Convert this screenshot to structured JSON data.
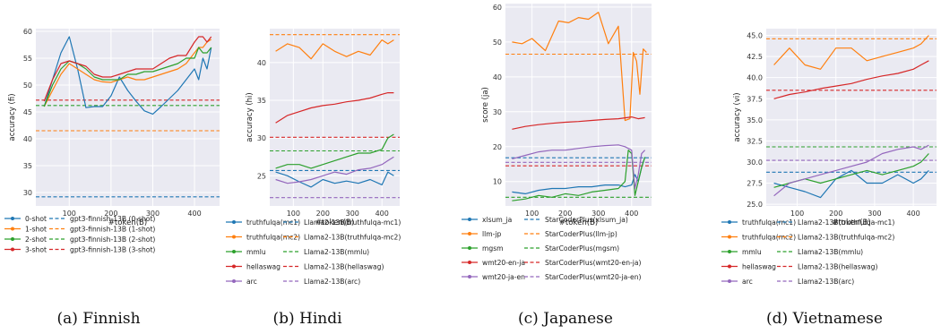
{
  "colors": {
    "panel_bg": "#eaeaf2",
    "grid": "#ffffff",
    "blue": "#1f77b4",
    "orange": "#ff7f0e",
    "green": "#2ca02c",
    "red": "#d62728",
    "purple": "#9467bd"
  },
  "chart_data": [
    {
      "type": "line",
      "caption": "(a) Finnish",
      "ylabel": "accuracy (fi)",
      "xlabel": "#token(B)",
      "xlim": [
        20,
        460
      ],
      "ylim": [
        27.5,
        60.5
      ],
      "xticks": [
        100,
        200,
        300,
        400
      ],
      "yticks": [
        30,
        35,
        40,
        45,
        50,
        55,
        60
      ],
      "legend_placement": "below",
      "legend_columns": 2,
      "grid": true,
      "series": [
        {
          "name": "0-shot",
          "color": "#1f77b4",
          "style": "solid",
          "x": [
            40,
            60,
            80,
            100,
            120,
            140,
            160,
            180,
            200,
            220,
            240,
            260,
            280,
            300,
            320,
            340,
            360,
            380,
            400,
            410,
            420,
            430,
            440
          ],
          "y": [
            46,
            51,
            56,
            59,
            53,
            45.8,
            46,
            46,
            48,
            51.5,
            49,
            47,
            45.2,
            44.6,
            46,
            47.5,
            49,
            51,
            53,
            51,
            55,
            53,
            57
          ]
        },
        {
          "name": "1-shot",
          "color": "#ff7f0e",
          "style": "solid",
          "x": [
            40,
            60,
            80,
            100,
            120,
            140,
            160,
            180,
            200,
            220,
            240,
            260,
            280,
            300,
            320,
            340,
            360,
            380,
            400,
            410,
            420,
            430,
            440
          ],
          "y": [
            46,
            49,
            52,
            54,
            53,
            52,
            51,
            50.6,
            50.5,
            51,
            51.5,
            51,
            51,
            51.5,
            52,
            52.5,
            53,
            54,
            56,
            57,
            57,
            58,
            58.5
          ]
        },
        {
          "name": "2-shot",
          "color": "#2ca02c",
          "style": "solid",
          "x": [
            40,
            60,
            80,
            100,
            120,
            140,
            160,
            180,
            200,
            220,
            240,
            260,
            280,
            300,
            320,
            340,
            360,
            380,
            400,
            410,
            420,
            430,
            440
          ],
          "y": [
            46,
            50,
            53,
            54.5,
            54,
            53,
            51.5,
            51,
            51,
            51,
            52,
            52,
            52.5,
            52.5,
            53,
            53.5,
            54,
            55,
            55,
            57,
            56,
            56,
            57
          ]
        },
        {
          "name": "3-shot",
          "color": "#d62728",
          "style": "solid",
          "x": [
            40,
            60,
            80,
            100,
            120,
            140,
            160,
            180,
            200,
            220,
            240,
            260,
            280,
            300,
            320,
            340,
            360,
            380,
            400,
            410,
            420,
            430,
            440
          ],
          "y": [
            47,
            51,
            54,
            54.5,
            54,
            53.5,
            52,
            51.5,
            51.5,
            52,
            52.5,
            53,
            53,
            53,
            54,
            55,
            55.5,
            55.5,
            58,
            59,
            59,
            58,
            59
          ]
        },
        {
          "name": "gpt3-finnish-13B (0-shot)",
          "color": "#1f77b4",
          "style": "dashed",
          "x": [
            20,
            460
          ],
          "y": [
            29.2,
            29.2
          ]
        },
        {
          "name": "gpt3-finnish-13B (1-shot)",
          "color": "#ff7f0e",
          "style": "dashed",
          "x": [
            20,
            460
          ],
          "y": [
            41.5,
            41.5
          ]
        },
        {
          "name": "gpt3-finnish-13B (2-shot)",
          "color": "#2ca02c",
          "style": "dashed",
          "x": [
            20,
            460
          ],
          "y": [
            46.2,
            46.2
          ]
        },
        {
          "name": "gpt3-finnish-13B (3-shot)",
          "color": "#d62728",
          "style": "dashed",
          "x": [
            20,
            460
          ],
          "y": [
            47.2,
            47.2
          ]
        }
      ]
    },
    {
      "type": "line",
      "caption": "(b) Hindi",
      "ylabel": "accuracy (hi)",
      "xlabel": "#token(B)",
      "xlim": [
        20,
        460
      ],
      "ylim": [
        21,
        44.5
      ],
      "xticks": [
        100,
        200,
        300,
        400
      ],
      "yticks": [
        25,
        30,
        35,
        40
      ],
      "legend_placement": "below",
      "legend_columns": 2,
      "grid": true,
      "series": [
        {
          "name": "truthfulqa(mc1)",
          "color": "#1f77b4",
          "style": "solid",
          "x": [
            40,
            80,
            120,
            160,
            200,
            240,
            280,
            320,
            360,
            400,
            420,
            440
          ],
          "y": [
            25.5,
            25,
            24.2,
            23.5,
            24.5,
            24,
            24.3,
            24,
            24.5,
            23.8,
            25.5,
            25
          ]
        },
        {
          "name": "truthfulqa(mc2)",
          "color": "#ff7f0e",
          "style": "solid",
          "x": [
            40,
            80,
            120,
            160,
            200,
            240,
            280,
            320,
            360,
            400,
            420,
            440
          ],
          "y": [
            41.5,
            42.5,
            42,
            40.5,
            42.5,
            41.5,
            40.8,
            41.5,
            41,
            43,
            42.5,
            43
          ]
        },
        {
          "name": "mmlu",
          "color": "#2ca02c",
          "style": "solid",
          "x": [
            40,
            80,
            120,
            160,
            200,
            240,
            280,
            320,
            360,
            400,
            420,
            440
          ],
          "y": [
            26,
            26.5,
            26.5,
            26,
            26.5,
            27,
            27.5,
            28,
            28,
            28.5,
            30,
            30.5
          ]
        },
        {
          "name": "hellaswag",
          "color": "#d62728",
          "style": "solid",
          "x": [
            40,
            80,
            120,
            160,
            200,
            240,
            280,
            320,
            360,
            400,
            420,
            440
          ],
          "y": [
            32,
            33,
            33.5,
            34,
            34.3,
            34.5,
            34.8,
            35,
            35.3,
            35.8,
            36,
            36
          ]
        },
        {
          "name": "arc",
          "color": "#9467bd",
          "style": "solid",
          "x": [
            40,
            80,
            120,
            160,
            200,
            240,
            280,
            320,
            360,
            400,
            420,
            440
          ],
          "y": [
            24.5,
            24,
            24.2,
            24.5,
            25,
            25.5,
            25.2,
            25.8,
            26,
            26.5,
            27,
            27.5
          ]
        },
        {
          "name": "Llama2-13B(truthfulqa-mc1)",
          "color": "#1f77b4",
          "style": "dashed",
          "x": [
            20,
            460
          ],
          "y": [
            25.7,
            25.7
          ]
        },
        {
          "name": "Llama2-13B(truthfulqa-mc2)",
          "color": "#ff7f0e",
          "style": "dashed",
          "x": [
            20,
            460
          ],
          "y": [
            43.7,
            43.7
          ]
        },
        {
          "name": "Llama2-13B(mmlu)",
          "color": "#2ca02c",
          "style": "dashed",
          "x": [
            20,
            460
          ],
          "y": [
            28.3,
            28.3
          ]
        },
        {
          "name": "Llama2-13B(hellaswag)",
          "color": "#d62728",
          "style": "dashed",
          "x": [
            20,
            460
          ],
          "y": [
            30.1,
            30.1
          ]
        },
        {
          "name": "Llama2-13B(arc)",
          "color": "#9467bd",
          "style": "dashed",
          "x": [
            20,
            460
          ],
          "y": [
            22.1,
            22.1
          ]
        }
      ]
    },
    {
      "type": "line",
      "caption": "(c) Japanese",
      "ylabel": "score (ja)",
      "xlabel": "#token(B)",
      "xlim": [
        20,
        460
      ],
      "ylim": [
        3,
        61
      ],
      "xticks": [
        100,
        200,
        300,
        400
      ],
      "yticks": [
        10,
        20,
        30,
        40,
        50,
        60
      ],
      "legend_placement": "below",
      "legend_columns": 2,
      "grid": true,
      "series": [
        {
          "name": "xlsum_ja",
          "color": "#1f77b4",
          "style": "solid",
          "x": [
            40,
            80,
            120,
            160,
            200,
            240,
            280,
            320,
            360,
            380,
            400,
            410,
            420,
            430,
            440
          ],
          "y": [
            7,
            6.5,
            7.5,
            8,
            8,
            8.5,
            8.5,
            9,
            9,
            8.5,
            9,
            12,
            10,
            14,
            17
          ]
        },
        {
          "name": "llm-jp",
          "color": "#ff7f0e",
          "style": "solid",
          "x": [
            40,
            70,
            100,
            140,
            180,
            210,
            240,
            270,
            300,
            330,
            360,
            380,
            395,
            405,
            415,
            425,
            435,
            445
          ],
          "y": [
            50,
            49.5,
            51,
            47.5,
            56,
            55.5,
            57,
            56.5,
            58.5,
            49.5,
            54.5,
            27.5,
            28,
            47,
            44.5,
            35,
            48,
            47
          ]
        },
        {
          "name": "mgsm",
          "color": "#2ca02c",
          "style": "solid",
          "x": [
            40,
            80,
            120,
            160,
            200,
            240,
            280,
            320,
            360,
            380,
            390,
            400,
            410,
            420,
            430,
            440
          ],
          "y": [
            4.5,
            5,
            6,
            5.5,
            6.5,
            6,
            7,
            7.5,
            8,
            10,
            19,
            18,
            6,
            10,
            14,
            17
          ]
        },
        {
          "name": "wmt20-en-ja",
          "color": "#d62728",
          "style": "solid",
          "x": [
            40,
            80,
            120,
            160,
            200,
            240,
            280,
            320,
            360,
            400,
            420,
            440
          ],
          "y": [
            25,
            25.8,
            26.3,
            26.7,
            27,
            27.2,
            27.5,
            27.8,
            28,
            28.5,
            28,
            28.3
          ]
        },
        {
          "name": "wmt20-ja-en",
          "color": "#9467bd",
          "style": "solid",
          "x": [
            40,
            80,
            120,
            160,
            200,
            240,
            280,
            320,
            360,
            380,
            400,
            410,
            420,
            430,
            440
          ],
          "y": [
            16.5,
            17.5,
            18.5,
            19,
            19,
            19.5,
            20,
            20.3,
            20.5,
            20,
            19,
            8,
            12,
            18,
            19
          ]
        },
        {
          "name": "StarCoderPlus(xlsum_ja)",
          "color": "#1f77b4",
          "style": "dashed",
          "x": [
            20,
            460
          ],
          "y": [
            16.8,
            16.8
          ]
        },
        {
          "name": "StarCoderPlus(llm-jp)",
          "color": "#ff7f0e",
          "style": "dashed",
          "x": [
            20,
            460
          ],
          "y": [
            46.5,
            46.5
          ]
        },
        {
          "name": "StarCoderPlus(mgsm)",
          "color": "#2ca02c",
          "style": "dashed",
          "x": [
            20,
            460
          ],
          "y": [
            5.5,
            5.5
          ]
        },
        {
          "name": "StarCoderPlus(wmt20-en-ja)",
          "color": "#d62728",
          "style": "dashed",
          "x": [
            20,
            460
          ],
          "y": [
            14.5,
            14.5
          ]
        },
        {
          "name": "StarCoderPlus(wmt20-ja-en)",
          "color": "#9467bd",
          "style": "dashed",
          "x": [
            20,
            460
          ],
          "y": [
            15.5,
            15.5
          ]
        }
      ]
    },
    {
      "type": "line",
      "caption": "(d) Vietnamese",
      "ylabel": "accuracy (vi)",
      "xlabel": "#token(B)",
      "xlim": [
        20,
        460
      ],
      "ylim": [
        24.8,
        45.8
      ],
      "xticks": [
        100,
        200,
        300,
        400
      ],
      "yticks": [
        25.0,
        27.5,
        30.0,
        32.5,
        35.0,
        37.5,
        40.0,
        42.5,
        45.0
      ],
      "legend_placement": "below",
      "legend_columns": 2,
      "grid": true,
      "series": [
        {
          "name": "truthfulqa(mc1)",
          "color": "#1f77b4",
          "style": "solid",
          "x": [
            40,
            80,
            120,
            160,
            200,
            240,
            280,
            320,
            360,
            400,
            420,
            440
          ],
          "y": [
            27.5,
            27,
            26.5,
            25.8,
            28,
            29,
            27.5,
            27.5,
            28.5,
            27.5,
            28,
            29
          ]
        },
        {
          "name": "truthfulqa(mc2)",
          "color": "#ff7f0e",
          "style": "solid",
          "x": [
            40,
            80,
            120,
            160,
            200,
            240,
            280,
            320,
            360,
            400,
            420,
            440
          ],
          "y": [
            41.5,
            43.5,
            41.5,
            41,
            43.5,
            43.5,
            42,
            42.5,
            43,
            43.5,
            44,
            45
          ]
        },
        {
          "name": "mmlu",
          "color": "#2ca02c",
          "style": "solid",
          "x": [
            40,
            80,
            120,
            160,
            200,
            240,
            280,
            320,
            360,
            400,
            420,
            440
          ],
          "y": [
            27,
            27.5,
            28,
            27.5,
            28,
            28.5,
            29,
            28.5,
            29,
            29.5,
            30,
            31
          ]
        },
        {
          "name": "hellaswag",
          "color": "#d62728",
          "style": "solid",
          "x": [
            40,
            80,
            120,
            160,
            200,
            240,
            280,
            320,
            360,
            400,
            420,
            440
          ],
          "y": [
            37.5,
            38,
            38.3,
            38.7,
            39,
            39.3,
            39.8,
            40.2,
            40.5,
            41,
            41.5,
            42
          ]
        },
        {
          "name": "arc",
          "color": "#9467bd",
          "style": "solid",
          "x": [
            40,
            80,
            120,
            160,
            200,
            240,
            280,
            320,
            360,
            400,
            420,
            440
          ],
          "y": [
            26,
            27.5,
            28,
            28.5,
            29,
            29.5,
            30,
            31,
            31.5,
            31.8,
            31.5,
            32
          ]
        },
        {
          "name": "Llama2-13B(truthfulqa-mc1)",
          "color": "#1f77b4",
          "style": "dashed",
          "x": [
            20,
            460
          ],
          "y": [
            28.8,
            28.8
          ]
        },
        {
          "name": "Llama2-13B(truthfulqa-mc2)",
          "color": "#ff7f0e",
          "style": "dashed",
          "x": [
            20,
            460
          ],
          "y": [
            44.6,
            44.6
          ]
        },
        {
          "name": "Llama2-13B(mmlu)",
          "color": "#2ca02c",
          "style": "dashed",
          "x": [
            20,
            460
          ],
          "y": [
            31.8,
            31.8
          ]
        },
        {
          "name": "Llama2-13B(hellaswag)",
          "color": "#d62728",
          "style": "dashed",
          "x": [
            20,
            460
          ],
          "y": [
            38.5,
            38.5
          ]
        },
        {
          "name": "Llama2-13B(arc)",
          "color": "#9467bd",
          "style": "dashed",
          "x": [
            20,
            460
          ],
          "y": [
            30.2,
            30.2
          ]
        }
      ]
    }
  ]
}
